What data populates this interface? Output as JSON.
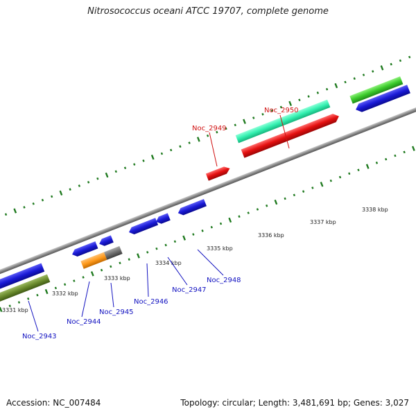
{
  "title": "Nitrosococcus oceani ATCC 19707, complete genome",
  "accession": "Accession: NC_007484",
  "stats": "Topology: circular; Length: 3,481,691 bp; Genes: 3,027",
  "colors": {
    "backbone": "#8a8a8a",
    "tick": "#1f7a1f",
    "label_blue": "#1010c0",
    "label_red": "#d01010"
  },
  "ticks": [
    "3331 kbp",
    "3332 kbp",
    "3333 kbp",
    "3334 kbp",
    "3335 kbp",
    "3336 kbp",
    "3337 kbp",
    "3338 kbp"
  ],
  "genes": [
    {
      "name": "Noc_2943",
      "strand": "-",
      "fill": "#1a1ad6",
      "hi": "#5a5af0",
      "highlight": false
    },
    {
      "name": "Noc_2944",
      "strand": "-",
      "fill": "#1a1ad6",
      "hi": "#5a5af0",
      "highlight": false
    },
    {
      "name": "Noc_2945",
      "strand": "-",
      "fill": "#1a1ad6",
      "hi": "#5a5af0",
      "highlight": false
    },
    {
      "name": "Noc_2946",
      "strand": "-",
      "fill": "#1a1ad6",
      "hi": "#5a5af0",
      "highlight": false
    },
    {
      "name": "Noc_2947",
      "strand": "-",
      "fill": "#1a1ad6",
      "hi": "#5a5af0",
      "highlight": false
    },
    {
      "name": "Noc_2948",
      "strand": "-",
      "fill": "#1a1ad6",
      "hi": "#5a5af0",
      "highlight": false
    },
    {
      "name": "Noc_2949",
      "strand": "+",
      "fill": "#e01010",
      "hi": "#ff6060",
      "highlight": true
    },
    {
      "name": "Noc_2950",
      "strand": "+",
      "fill": "#e01010",
      "hi": "#ff6060",
      "highlight": true
    }
  ],
  "labels": {
    "Noc_2943": "Noc_2943",
    "Noc_2944": "Noc_2944",
    "Noc_2945": "Noc_2945",
    "Noc_2946": "Noc_2946",
    "Noc_2947": "Noc_2947",
    "Noc_2948": "Noc_2948",
    "Noc_2949": "Noc_2949",
    "Noc_2950": "Noc_2950"
  }
}
